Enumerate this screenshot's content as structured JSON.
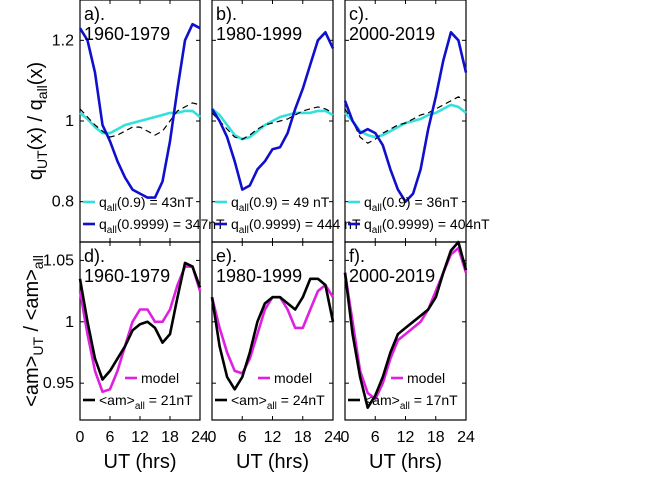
{
  "figure": {
    "xlabel": "UT (hrs)",
    "ylabel_top": "q_UT(x) / q_all(x)",
    "ylabel_bottom": "<am>_UT / <am>_all",
    "xticks": [
      "0",
      "6",
      "12",
      "18",
      "24"
    ],
    "yticks_top": [
      "0.8",
      "1",
      "1.2"
    ],
    "yticks_bottom": [
      "0.95",
      "1",
      "1.05"
    ],
    "colors": {
      "cyan": "#33e0dd",
      "blue": "#1010cc",
      "black": "#000000",
      "magenta": "#e020e0"
    }
  },
  "chart_data": [
    {
      "type": "line",
      "title": "a). 1960-1979",
      "xlabel": "",
      "ylabel": "q_UT(x) / q_all(x)",
      "xlim": [
        0,
        24
      ],
      "ylim": [
        0.7,
        1.3
      ],
      "yticks": [
        0.8,
        1,
        1.2
      ],
      "x": [
        0,
        1.5,
        3,
        4.5,
        6,
        7.5,
        9,
        10.5,
        12,
        13.5,
        15,
        16.5,
        18,
        19.5,
        21,
        22.5,
        24
      ],
      "series": [
        {
          "name": "q_all(0.9) = 43nT",
          "color": "#33e0dd",
          "style": "solid",
          "values": [
            1.02,
            1.005,
            0.985,
            0.97,
            0.97,
            0.98,
            0.99,
            0.995,
            1.0,
            1.005,
            1.01,
            1.015,
            1.02,
            1.02,
            1.025,
            1.025,
            1.01
          ]
        },
        {
          "name": "",
          "color": "#000000",
          "style": "dashed",
          "values": [
            1.03,
            1.01,
            0.99,
            0.975,
            0.96,
            0.965,
            0.975,
            0.985,
            0.985,
            0.975,
            0.965,
            0.975,
            1.0,
            1.025,
            1.035,
            1.045,
            1.04
          ]
        },
        {
          "name": "q_all(0.9999) = 347nT",
          "color": "#1010cc",
          "style": "solid",
          "values": [
            1.23,
            1.2,
            1.12,
            0.99,
            0.95,
            0.9,
            0.86,
            0.83,
            0.82,
            0.81,
            0.81,
            0.85,
            0.95,
            1.08,
            1.2,
            1.24,
            1.23
          ]
        }
      ]
    },
    {
      "type": "line",
      "title": "b). 1980-1999",
      "xlabel": "",
      "ylabel": "",
      "xlim": [
        0,
        24
      ],
      "ylim": [
        0.7,
        1.3
      ],
      "x": [
        0,
        1.5,
        3,
        4.5,
        6,
        7.5,
        9,
        10.5,
        12,
        13.5,
        15,
        16.5,
        18,
        19.5,
        21,
        22.5,
        24
      ],
      "series": [
        {
          "name": "q_all(0.9) = 49 nT",
          "color": "#33e0dd",
          "style": "solid",
          "values": [
            1.03,
            1.015,
            0.99,
            0.965,
            0.955,
            0.96,
            0.975,
            0.99,
            1.0,
            1.01,
            1.015,
            1.02,
            1.02,
            1.02,
            1.025,
            1.025,
            1.015
          ]
        },
        {
          "name": "",
          "color": "#000000",
          "style": "dashed",
          "values": [
            1.02,
            1.0,
            0.98,
            0.96,
            0.955,
            0.965,
            0.98,
            0.99,
            0.995,
            1.0,
            1.005,
            1.015,
            1.025,
            1.03,
            1.035,
            1.03,
            1.02
          ]
        },
        {
          "name": "q_all(0.9999) = 444 nT",
          "color": "#1010cc",
          "style": "solid",
          "values": [
            1.03,
            1.0,
            0.96,
            0.9,
            0.83,
            0.84,
            0.88,
            0.9,
            0.93,
            0.935,
            0.97,
            1.03,
            1.08,
            1.14,
            1.2,
            1.22,
            1.18
          ]
        }
      ]
    },
    {
      "type": "line",
      "title": "c). 2000-2019",
      "xlabel": "",
      "ylabel": "",
      "xlim": [
        0,
        24
      ],
      "ylim": [
        0.7,
        1.3
      ],
      "x": [
        0,
        1.5,
        3,
        4.5,
        6,
        7.5,
        9,
        10.5,
        12,
        13.5,
        15,
        16.5,
        18,
        19.5,
        21,
        22.5,
        24
      ],
      "series": [
        {
          "name": "q_all(0.9) = 36nT",
          "color": "#33e0dd",
          "style": "solid",
          "values": [
            1.02,
            1.0,
            0.975,
            0.965,
            0.96,
            0.965,
            0.975,
            0.985,
            0.995,
            1.0,
            1.005,
            1.015,
            1.02,
            1.03,
            1.04,
            1.035,
            1.02
          ]
        },
        {
          "name": "",
          "color": "#000000",
          "style": "dashed",
          "values": [
            1.03,
            1.0,
            0.96,
            0.945,
            0.955,
            0.97,
            0.98,
            0.99,
            0.995,
            1.005,
            1.015,
            1.02,
            1.03,
            1.04,
            1.05,
            1.06,
            1.05
          ]
        },
        {
          "name": "q_all(0.9999) = 404nT",
          "color": "#1010cc",
          "style": "solid",
          "values": [
            1.05,
            1.0,
            0.97,
            0.98,
            0.97,
            0.94,
            0.88,
            0.83,
            0.8,
            0.82,
            0.88,
            0.98,
            1.06,
            1.15,
            1.22,
            1.2,
            1.12
          ]
        }
      ]
    },
    {
      "type": "line",
      "title": "d). 1960-1979",
      "xlabel": "UT (hrs)",
      "ylabel": "<am>_UT / <am>_all",
      "xlim": [
        0,
        24
      ],
      "ylim": [
        0.92,
        1.065
      ],
      "yticks": [
        0.95,
        1,
        1.05
      ],
      "x": [
        0,
        1.5,
        3,
        4.5,
        6,
        7.5,
        9,
        10.5,
        12,
        13.5,
        15,
        16.5,
        18,
        19.5,
        21,
        22.5,
        24
      ],
      "series": [
        {
          "name": "model",
          "color": "#e020e0",
          "style": "solid",
          "values": [
            1.025,
            0.99,
            0.96,
            0.943,
            0.945,
            0.96,
            0.98,
            1.0,
            1.01,
            1.01,
            1.0,
            1.0,
            1.01,
            1.03,
            1.045,
            1.045,
            1.025
          ]
        },
        {
          "name": "<am>_all = 21nT",
          "color": "#000000",
          "style": "solid",
          "values": [
            1.035,
            1.0,
            0.97,
            0.953,
            0.96,
            0.97,
            0.98,
            0.993,
            0.998,
            1.0,
            0.995,
            0.983,
            0.99,
            1.02,
            1.048,
            1.045,
            1.028
          ]
        }
      ]
    },
    {
      "type": "line",
      "title": "e). 1980-1999",
      "xlabel": "UT (hrs)",
      "ylabel": "",
      "xlim": [
        0,
        24
      ],
      "ylim": [
        0.92,
        1.065
      ],
      "x": [
        0,
        1.5,
        3,
        4.5,
        6,
        7.5,
        9,
        10.5,
        12,
        13.5,
        15,
        16.5,
        18,
        19.5,
        21,
        22.5,
        24
      ],
      "series": [
        {
          "name": "model",
          "color": "#e020e0",
          "style": "solid",
          "values": [
            1.02,
            0.995,
            0.975,
            0.96,
            0.958,
            0.97,
            0.99,
            1.01,
            1.02,
            1.02,
            1.01,
            0.995,
            0.995,
            1.01,
            1.025,
            1.03,
            1.02
          ]
        },
        {
          "name": "<am>_all = 24nT",
          "color": "#000000",
          "style": "solid",
          "values": [
            1.02,
            0.98,
            0.955,
            0.945,
            0.955,
            0.975,
            1.0,
            1.015,
            1.02,
            1.02,
            1.015,
            1.01,
            1.02,
            1.035,
            1.035,
            1.03,
            1.0
          ]
        }
      ]
    },
    {
      "type": "line",
      "title": "f). 2000-2019",
      "xlabel": "UT (hrs)",
      "ylabel": "",
      "xlim": [
        0,
        24
      ],
      "ylim": [
        0.92,
        1.065
      ],
      "x": [
        0,
        1.5,
        3,
        4.5,
        6,
        7.5,
        9,
        10.5,
        12,
        13.5,
        15,
        16.5,
        18,
        19.5,
        21,
        22.5,
        24
      ],
      "series": [
        {
          "name": "model",
          "color": "#e020e0",
          "style": "solid",
          "values": [
            1.04,
            1.0,
            0.96,
            0.942,
            0.937,
            0.95,
            0.97,
            0.985,
            0.99,
            0.995,
            1.0,
            1.01,
            1.025,
            1.04,
            1.055,
            1.06,
            1.04
          ]
        },
        {
          "name": "<am>_all = 17nT",
          "color": "#000000",
          "style": "solid",
          "values": [
            1.04,
            0.99,
            0.955,
            0.93,
            0.94,
            0.955,
            0.975,
            0.99,
            0.995,
            1.0,
            1.005,
            1.01,
            1.02,
            1.04,
            1.058,
            1.065,
            1.042
          ]
        }
      ]
    }
  ]
}
